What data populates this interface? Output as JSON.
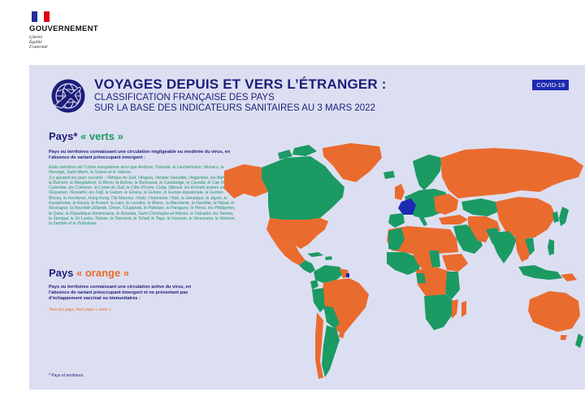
{
  "header": {
    "government": "GOUVERNEMENT",
    "motto": [
      "Liberté",
      "Égalité",
      "Fraternité"
    ]
  },
  "main": {
    "title": "VOYAGES DEPUIS ET VERS L’ÉTRANGER :",
    "subtitle_1": "CLASSIFICATION FRANÇAISE DES PAYS",
    "subtitle_2": "SUR LA BASE DES INDICATEURS SANITAIRES AU 3 MARS 2022",
    "badge": "COVID-19",
    "icon": "plane-globe-icon"
  },
  "green": {
    "title_prefix": "Pays*",
    "title_accent": "« verts »",
    "description": "Pays ou territoires connaissant une circulation négligeable ou modérée du virus, en l’absence de variant préoccupant émergent :",
    "list_intro": "États membres de l’Union européenne ainsi que Andorre, l’Islande, le Liechtenstein, Monaco, la Norvège, Saint-Marin, la Suisse et le Vatican.",
    "list": "S’y ajoutent les pays suivants : l’Afrique du Sud, l’Angola, l’Arabie Saoudite, l’Argentine, les Bahamas, le Bahreïn, le Bangladesh, le Bénin, la Bolivie, le Botswana, le Cambodge, le Canada, le Cap Vert, la Colombie, les Comores, la Corée du Sud, la Côte d’Ivoire, Cuba, Djibouti, les Émirats arabes unis, l’Équateur, l’Eswatini, les Fidji, le Gabon, le Ghana, la Guinée, la Guinée équatoriale, la Guinée-Bissau, le Honduras, Hong-Kong, l’île Maurice, l’Inde, l’Indonésie, l’Irak, la Jamaïque, le Japon, le Kazakhstan, le Kenya, le Koweït, le Laos, le Lesotho, le Maroc, la Mauritanie, la Namibie, le Népal, le Nicaragua, la Nouvelle-Zélande, Oman, l’Ouganda, le Pakistan, le Paraguay, le Pérou, les Philippines, le Qatar, la République dominicaine, le Rwanda, Saint-Christophe-et-Niévès, le Salvador, les Samoa, le Sénégal, le Sri Lanka, Taïwan, la Tanzanie, le Tchad, le Togo, le Vanuatu, le Venezuela, le Vietnam, la Zambie et le Zimbabwe."
  },
  "orange": {
    "title_prefix": "Pays",
    "title_accent": "« orange »",
    "description": "Pays ou territoires connaissant une circulation active du virus, en l’absence de variant préoccupant émergent et ne présentant pas d’échappement vaccinal ou immunitaires :",
    "list": "Tous les pays, hors pays « verts »."
  },
  "footnote": "* Pays et territoires.",
  "colors": {
    "green": "#1b9a64",
    "orange": "#ea6b2e",
    "france": "#1d2bb0",
    "navy": "#1d1d7a",
    "panel": "#dcdff1"
  }
}
